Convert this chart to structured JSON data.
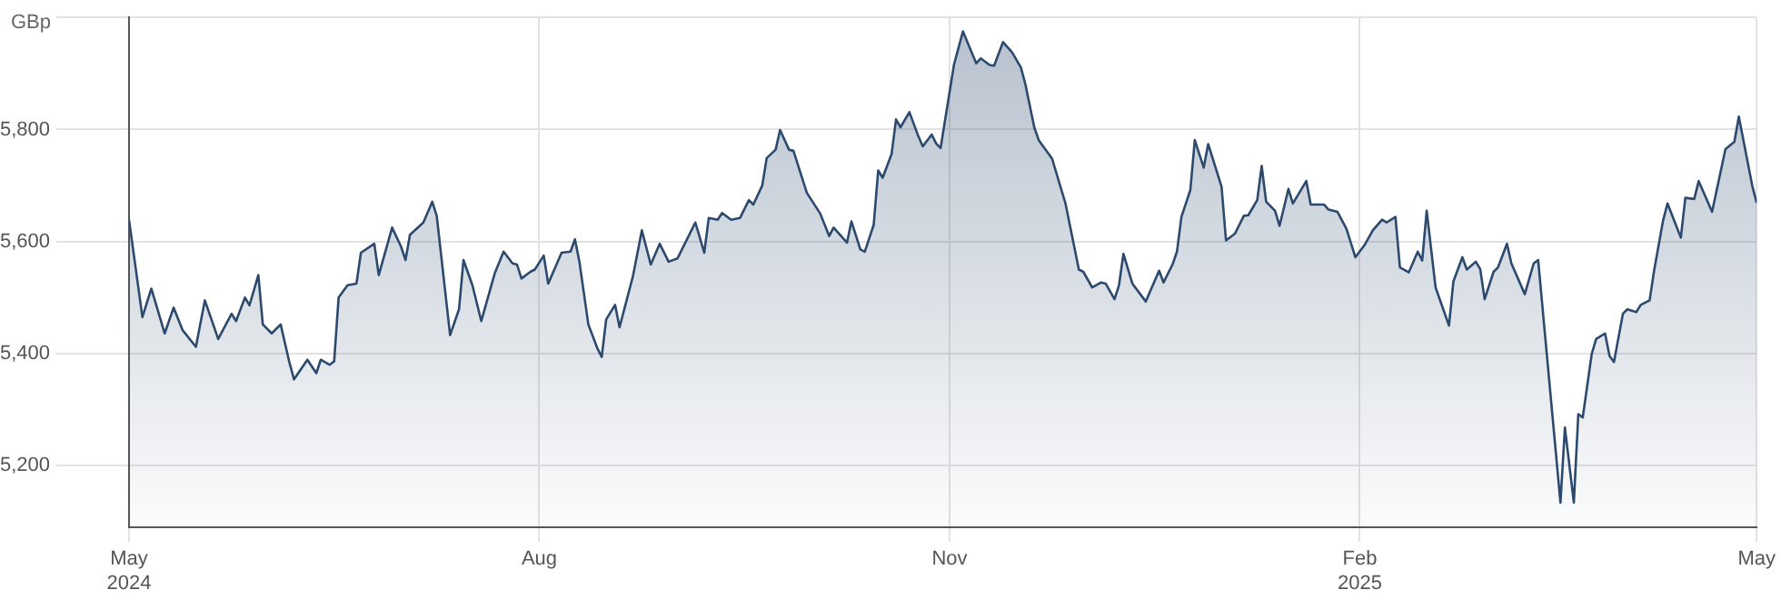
{
  "chart_data": {
    "type": "area",
    "ylabel": "GBp",
    "xlim": [
      "2024-05-01",
      "2025-05-01"
    ],
    "xticks": [
      {
        "value": "2024-05-01",
        "label": "May\n2024"
      },
      {
        "value": "2024-08-01",
        "label": "Aug"
      },
      {
        "value": "2024-11-01",
        "label": "Nov"
      },
      {
        "value": "2025-02-01",
        "label": "Feb\n2025"
      },
      {
        "value": "2025-05-01",
        "label": "May"
      }
    ],
    "ylim": [
      5090,
      6000
    ],
    "yticks": [
      {
        "value": 5200,
        "label": "5,200"
      },
      {
        "value": 5400,
        "label": "5,400"
      },
      {
        "value": 5600,
        "label": "5,600"
      },
      {
        "value": 5800,
        "label": "5,800"
      },
      {
        "value": 6000,
        "label": null
      }
    ],
    "grid": true,
    "legend": false,
    "marker": "none",
    "line_style": "solid",
    "series": [
      {
        "color": "#2c4a6e",
        "x": [
          "2024-05-01",
          "2024-05-04",
          "2024-05-06",
          "2024-05-09",
          "2024-05-11",
          "2024-05-13",
          "2024-05-16",
          "2024-05-18",
          "2024-05-21",
          "2024-05-24",
          "2024-05-25",
          "2024-05-27",
          "2024-05-28",
          "2024-05-30",
          "2024-05-31",
          "2024-06-02",
          "2024-06-04",
          "2024-06-06",
          "2024-06-07",
          "2024-06-10",
          "2024-06-12",
          "2024-06-13",
          "2024-06-15",
          "2024-06-16",
          "2024-06-17",
          "2024-06-19",
          "2024-06-21",
          "2024-06-22",
          "2024-06-25",
          "2024-06-26",
          "2024-06-29",
          "2024-07-01",
          "2024-07-02",
          "2024-07-03",
          "2024-07-06",
          "2024-07-08",
          "2024-07-09",
          "2024-07-12",
          "2024-07-14",
          "2024-07-15",
          "2024-07-17",
          "2024-07-19",
          "2024-07-22",
          "2024-07-24",
          "2024-07-26",
          "2024-07-27",
          "2024-07-28",
          "2024-07-30",
          "2024-07-31",
          "2024-08-02",
          "2024-08-03",
          "2024-08-04",
          "2024-08-06",
          "2024-08-08",
          "2024-08-09",
          "2024-08-10",
          "2024-08-12",
          "2024-08-14",
          "2024-08-15",
          "2024-08-16",
          "2024-08-18",
          "2024-08-19",
          "2024-08-22",
          "2024-08-24",
          "2024-08-26",
          "2024-08-28",
          "2024-08-30",
          "2024-09-01",
          "2024-09-05",
          "2024-09-07",
          "2024-09-08",
          "2024-09-10",
          "2024-09-11",
          "2024-09-13",
          "2024-09-15",
          "2024-09-17",
          "2024-09-18",
          "2024-09-20",
          "2024-09-21",
          "2024-09-23",
          "2024-09-24",
          "2024-09-26",
          "2024-09-27",
          "2024-09-30",
          "2024-10-03",
          "2024-10-05",
          "2024-10-06",
          "2024-10-09",
          "2024-10-10",
          "2024-10-12",
          "2024-10-13",
          "2024-10-15",
          "2024-10-16",
          "2024-10-17",
          "2024-10-19",
          "2024-10-20",
          "2024-10-21",
          "2024-10-23",
          "2024-10-25",
          "2024-10-26",
          "2024-10-28",
          "2024-10-29",
          "2024-10-30",
          "2024-11-02",
          "2024-11-04",
          "2024-11-07",
          "2024-11-08",
          "2024-11-10",
          "2024-11-11",
          "2024-11-13",
          "2024-11-15",
          "2024-11-17",
          "2024-11-18",
          "2024-11-20",
          "2024-11-21",
          "2024-11-24",
          "2024-11-27",
          "2024-11-30",
          "2024-12-01",
          "2024-12-03",
          "2024-12-05",
          "2024-12-06",
          "2024-12-08",
          "2024-12-09",
          "2024-12-10",
          "2024-12-12",
          "2024-12-15",
          "2024-12-18",
          "2024-12-19",
          "2024-12-21",
          "2024-12-22",
          "2024-12-23",
          "2024-12-25",
          "2024-12-26",
          "2024-12-28",
          "2024-12-29",
          "2025-01-01",
          "2025-01-02",
          "2025-01-04",
          "2025-01-06",
          "2025-01-07",
          "2025-01-09",
          "2025-01-10",
          "2025-01-11",
          "2025-01-13",
          "2025-01-14",
          "2025-01-16",
          "2025-01-17",
          "2025-01-20",
          "2025-01-21",
          "2025-01-24",
          "2025-01-25",
          "2025-01-27",
          "2025-01-29",
          "2025-01-31",
          "2025-02-02",
          "2025-02-04",
          "2025-02-06",
          "2025-02-07",
          "2025-02-09",
          "2025-02-10",
          "2025-02-12",
          "2025-02-14",
          "2025-02-15",
          "2025-02-16",
          "2025-02-18",
          "2025-02-21",
          "2025-02-22",
          "2025-02-24",
          "2025-02-25",
          "2025-02-27",
          "2025-02-28",
          "2025-03-01",
          "2025-03-03",
          "2025-03-04",
          "2025-03-06",
          "2025-03-07",
          "2025-03-10",
          "2025-03-12",
          "2025-03-13",
          "2025-03-18",
          "2025-03-19",
          "2025-03-21",
          "2025-03-22",
          "2025-03-23",
          "2025-03-25",
          "2025-03-26",
          "2025-03-28",
          "2025-03-29",
          "2025-03-30",
          "2025-04-01",
          "2025-04-02",
          "2025-04-04",
          "2025-04-05",
          "2025-04-07",
          "2025-04-08",
          "2025-04-10",
          "2025-04-11",
          "2025-04-14",
          "2025-04-15",
          "2025-04-17",
          "2025-04-18",
          "2025-04-21",
          "2025-04-24",
          "2025-04-26",
          "2025-04-27",
          "2025-04-30",
          "2025-05-01"
        ],
        "values": [
          5639,
          5465,
          5516,
          5436,
          5482,
          5442,
          5412,
          5495,
          5426,
          5471,
          5458,
          5500,
          5486,
          5540,
          5452,
          5436,
          5452,
          5383,
          5354,
          5389,
          5365,
          5389,
          5380,
          5386,
          5500,
          5522,
          5525,
          5580,
          5596,
          5540,
          5625,
          5591,
          5567,
          5612,
          5634,
          5671,
          5646,
          5433,
          5479,
          5567,
          5522,
          5458,
          5543,
          5582,
          5561,
          5559,
          5534,
          5546,
          5550,
          5575,
          5525,
          5543,
          5580,
          5582,
          5604,
          5564,
          5452,
          5410,
          5394,
          5461,
          5487,
          5447,
          5538,
          5620,
          5559,
          5596,
          5564,
          5570,
          5634,
          5580,
          5642,
          5639,
          5651,
          5639,
          5642,
          5674,
          5666,
          5700,
          5749,
          5764,
          5799,
          5764,
          5762,
          5687,
          5650,
          5610,
          5625,
          5598,
          5636,
          5586,
          5582,
          5630,
          5727,
          5714,
          5756,
          5818,
          5804,
          5831,
          5788,
          5770,
          5791,
          5775,
          5767,
          5916,
          5975,
          5918,
          5927,
          5915,
          5914,
          5956,
          5938,
          5911,
          5881,
          5804,
          5781,
          5748,
          5668,
          5550,
          5546,
          5518,
          5527,
          5525,
          5497,
          5522,
          5578,
          5525,
          5493,
          5548,
          5527,
          5559,
          5582,
          5644,
          5692,
          5781,
          5732,
          5774,
          5698,
          5602,
          5614,
          5646,
          5647,
          5674,
          5735,
          5671,
          5655,
          5628,
          5694,
          5668,
          5708,
          5666,
          5666,
          5657,
          5653,
          5623,
          5572,
          5593,
          5621,
          5639,
          5634,
          5644,
          5554,
          5545,
          5582,
          5566,
          5655,
          5518,
          5450,
          5529,
          5572,
          5550,
          5564,
          5551,
          5497,
          5546,
          5554,
          5596,
          5561,
          5506,
          5561,
          5567,
          5134,
          5268,
          5134,
          5292,
          5286,
          5399,
          5426,
          5436,
          5396,
          5385,
          5471,
          5479,
          5474,
          5487,
          5495,
          5548,
          5637,
          5668,
          5607,
          5678,
          5676,
          5708,
          5653,
          5765,
          5778,
          5823,
          5700,
          5669
        ]
      }
    ]
  }
}
